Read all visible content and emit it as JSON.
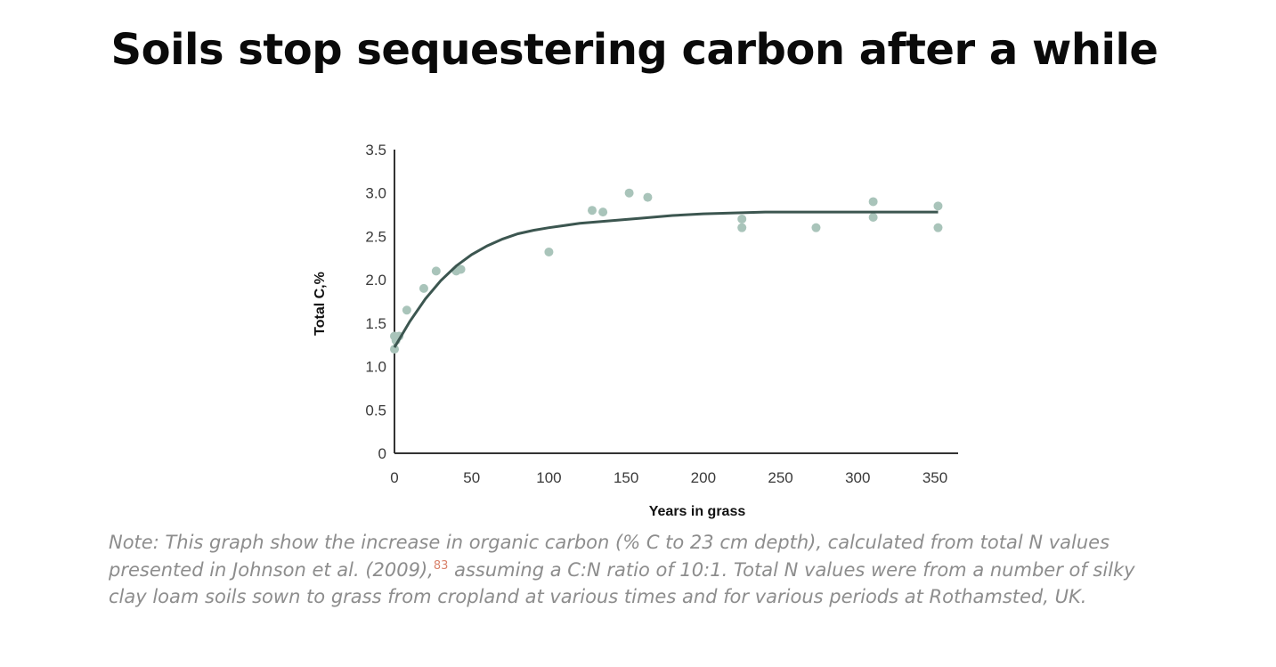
{
  "slide": {
    "title": "Soils stop sequestering carbon after a while"
  },
  "note": {
    "part1": "Note: This graph show the increase in organic carbon (% C to 23 cm depth), calculated from total N values presented in Johnson et al. (2009),",
    "reference": "83",
    "part2": " assuming a C:N ratio of 10:1. Total N values were from a number of silky clay loam soils sown to grass from cropland at various times and for various periods at Rothamsted, UK."
  },
  "chart_data": {
    "type": "scatter",
    "xlabel": "Years in grass",
    "ylabel": "Total C,%",
    "xlim": [
      0,
      350
    ],
    "ylim": [
      0,
      3.5
    ],
    "x_ticks": [
      "0",
      "50",
      "100",
      "150",
      "200",
      "250",
      "300",
      "350"
    ],
    "y_ticks": [
      "0",
      "0.5",
      "1.0",
      "1.5",
      "2.0",
      "2.5",
      "3.0",
      "3.5"
    ],
    "grid": false,
    "legend": "none",
    "colors": {
      "points": "#a9c4ba",
      "curve": "#3c5650",
      "axis": "#333333"
    },
    "series": [
      {
        "kind": "points",
        "x": [
          0,
          0,
          1,
          3,
          8,
          19,
          27,
          40,
          43,
          100,
          128,
          135,
          152,
          164,
          225,
          225,
          273,
          310,
          310,
          352,
          352
        ],
        "y": [
          1.2,
          1.35,
          1.3,
          1.35,
          1.65,
          1.9,
          2.1,
          2.1,
          2.12,
          2.32,
          2.8,
          2.78,
          3.0,
          2.95,
          2.6,
          2.7,
          2.6,
          2.9,
          2.72,
          2.6,
          2.85
        ]
      },
      {
        "kind": "curve",
        "x": [
          0,
          10,
          20,
          30,
          40,
          50,
          60,
          70,
          80,
          90,
          100,
          120,
          140,
          160,
          180,
          200,
          220,
          240,
          260,
          280,
          300,
          320,
          340,
          352
        ],
        "y": [
          1.22,
          1.52,
          1.78,
          1.99,
          2.16,
          2.29,
          2.39,
          2.47,
          2.53,
          2.57,
          2.6,
          2.65,
          2.68,
          2.71,
          2.74,
          2.76,
          2.77,
          2.78,
          2.78,
          2.78,
          2.78,
          2.78,
          2.78,
          2.78
        ]
      }
    ]
  }
}
